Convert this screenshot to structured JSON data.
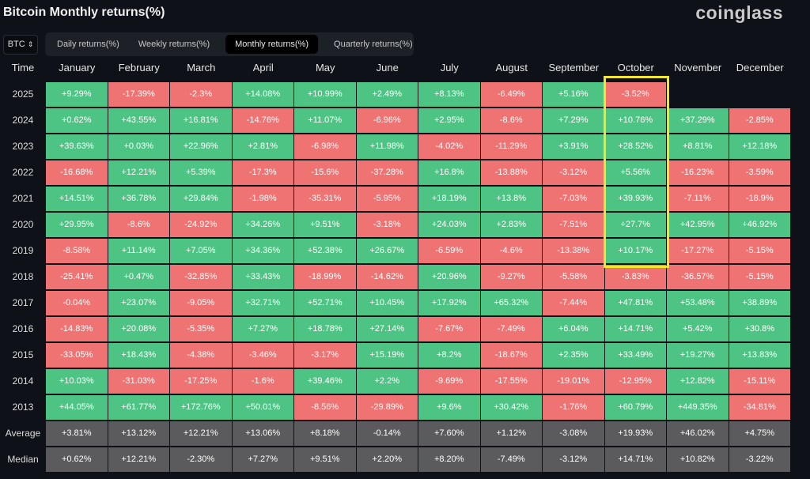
{
  "title": "Bitcoin Monthly returns(%)",
  "logo": "coinglass",
  "asset_select": {
    "value": "BTC",
    "icon": "up-down-chevron-icon"
  },
  "tabs": [
    {
      "label": "Daily returns(%)",
      "active": false
    },
    {
      "label": "Weekly returns(%)",
      "active": false
    },
    {
      "label": "Monthly returns(%)",
      "active": true
    },
    {
      "label": "Quarterly returns(%)",
      "active": false
    }
  ],
  "colors": {
    "positive": "#4ec484",
    "negative": "#f07373",
    "summary": "#5b5b5d",
    "highlight": "#f2e62a"
  },
  "chart_data": {
    "type": "table",
    "title": "Bitcoin Monthly returns(%)",
    "row_header": "Time",
    "columns": [
      "January",
      "February",
      "March",
      "April",
      "May",
      "June",
      "July",
      "August",
      "September",
      "October",
      "November",
      "December"
    ],
    "highlighted_column": "October",
    "rows": [
      {
        "label": "2025",
        "values": [
          "+9.29%",
          "-17.39%",
          "-2.3%",
          "+14.08%",
          "+10.99%",
          "+2.49%",
          "+8.13%",
          "-6.49%",
          "+5.16%",
          "-3.52%"
        ]
      },
      {
        "label": "2024",
        "values": [
          "+0.62%",
          "+43.55%",
          "+16.81%",
          "-14.76%",
          "+11.07%",
          "-6.96%",
          "+2.95%",
          "-8.6%",
          "+7.29%",
          "+10.76%",
          "+37.29%",
          "-2.85%"
        ]
      },
      {
        "label": "2023",
        "values": [
          "+39.63%",
          "+0.03%",
          "+22.96%",
          "+2.81%",
          "-6.98%",
          "+11.98%",
          "-4.02%",
          "-11.29%",
          "+3.91%",
          "+28.52%",
          "+8.81%",
          "+12.18%"
        ]
      },
      {
        "label": "2022",
        "values": [
          "-16.68%",
          "+12.21%",
          "+5.39%",
          "-17.3%",
          "-15.6%",
          "-37.28%",
          "+16.8%",
          "-13.88%",
          "-3.12%",
          "+5.56%",
          "-16.23%",
          "-3.59%"
        ]
      },
      {
        "label": "2021",
        "values": [
          "+14.51%",
          "+36.78%",
          "+29.84%",
          "-1.98%",
          "-35.31%",
          "-5.95%",
          "+18.19%",
          "+13.8%",
          "-7.03%",
          "+39.93%",
          "-7.11%",
          "-18.9%"
        ]
      },
      {
        "label": "2020",
        "values": [
          "+29.95%",
          "-8.6%",
          "-24.92%",
          "+34.26%",
          "+9.51%",
          "-3.18%",
          "+24.03%",
          "+2.83%",
          "-7.51%",
          "+27.7%",
          "+42.95%",
          "+46.92%"
        ]
      },
      {
        "label": "2019",
        "values": [
          "-8.58%",
          "+11.14%",
          "+7.05%",
          "+34.36%",
          "+52.38%",
          "+26.67%",
          "-6.59%",
          "-4.6%",
          "-13.38%",
          "+10.17%",
          "-17.27%",
          "-5.15%"
        ]
      },
      {
        "label": "2018",
        "values": [
          "-25.41%",
          "+0.47%",
          "-32.85%",
          "+33.43%",
          "-18.99%",
          "-14.62%",
          "+20.96%",
          "-9.27%",
          "-5.58%",
          "-3.83%",
          "-36.57%",
          "-5.15%"
        ]
      },
      {
        "label": "2017",
        "values": [
          "-0.04%",
          "+23.07%",
          "-9.05%",
          "+32.71%",
          "+52.71%",
          "+10.45%",
          "+17.92%",
          "+65.32%",
          "-7.44%",
          "+47.81%",
          "+53.48%",
          "+38.89%"
        ]
      },
      {
        "label": "2016",
        "values": [
          "-14.83%",
          "+20.08%",
          "-5.35%",
          "+7.27%",
          "+18.78%",
          "+27.14%",
          "-7.67%",
          "-7.49%",
          "+6.04%",
          "+14.71%",
          "+5.42%",
          "+30.8%"
        ]
      },
      {
        "label": "2015",
        "values": [
          "-33.05%",
          "+18.43%",
          "-4.38%",
          "-3.46%",
          "-3.17%",
          "+15.19%",
          "+8.2%",
          "-18.67%",
          "+2.35%",
          "+33.49%",
          "+19.27%",
          "+13.83%"
        ]
      },
      {
        "label": "2014",
        "values": [
          "+10.03%",
          "-31.03%",
          "-17.25%",
          "-1.6%",
          "+39.46%",
          "+2.2%",
          "-9.69%",
          "-17.55%",
          "-19.01%",
          "-12.95%",
          "+12.82%",
          "-15.11%"
        ]
      },
      {
        "label": "2013",
        "values": [
          "+44.05%",
          "+61.77%",
          "+172.76%",
          "+50.01%",
          "-8.56%",
          "-29.89%",
          "+9.6%",
          "+30.42%",
          "-1.76%",
          "+60.79%",
          "+449.35%",
          "-34.81%"
        ]
      }
    ],
    "summary": [
      {
        "label": "Average",
        "values": [
          "+3.81%",
          "+13.12%",
          "+12.21%",
          "+13.06%",
          "+8.18%",
          "-0.14%",
          "+7.60%",
          "+1.12%",
          "-3.08%",
          "+19.93%",
          "+46.02%",
          "+4.75%"
        ]
      },
      {
        "label": "Median",
        "values": [
          "+0.62%",
          "+12.21%",
          "-2.30%",
          "+7.27%",
          "+9.51%",
          "+2.20%",
          "+8.20%",
          "-7.49%",
          "-3.12%",
          "+14.71%",
          "+10.82%",
          "-3.22%"
        ]
      }
    ]
  }
}
